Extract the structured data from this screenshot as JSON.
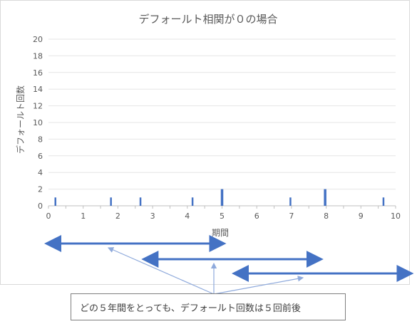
{
  "chart_data": {
    "type": "bar",
    "title": "デフォールト相関が０の場合",
    "xlabel": "期間",
    "ylabel": "デフォールト回数",
    "xlim": [
      0,
      10
    ],
    "ylim": [
      0,
      20
    ],
    "x_ticks": [
      0,
      1,
      2,
      3,
      4,
      5,
      6,
      7,
      8,
      9,
      10
    ],
    "y_ticks": [
      0,
      2,
      4,
      6,
      8,
      10,
      12,
      14,
      16,
      18,
      20
    ],
    "grid": "horizontal",
    "points": [
      {
        "x": 0.2,
        "y": 1
      },
      {
        "x": 1.8,
        "y": 1
      },
      {
        "x": 2.65,
        "y": 1
      },
      {
        "x": 4.15,
        "y": 1
      },
      {
        "x": 5.0,
        "y": 2
      },
      {
        "x": 6.97,
        "y": 1
      },
      {
        "x": 7.97,
        "y": 2
      },
      {
        "x": 9.65,
        "y": 1
      }
    ],
    "bar_color": "#4472c4"
  },
  "annotation": {
    "callout_text": "どの５年間をとっても、デフォールト回数は５回前後",
    "windows": [
      {
        "start": 0,
        "end": 5
      },
      {
        "start": 2.8,
        "end": 7.8
      },
      {
        "start": 5.4,
        "end": 10.4
      }
    ],
    "arrow_color": "#4472c4",
    "pointer_color": "#8faadc"
  }
}
